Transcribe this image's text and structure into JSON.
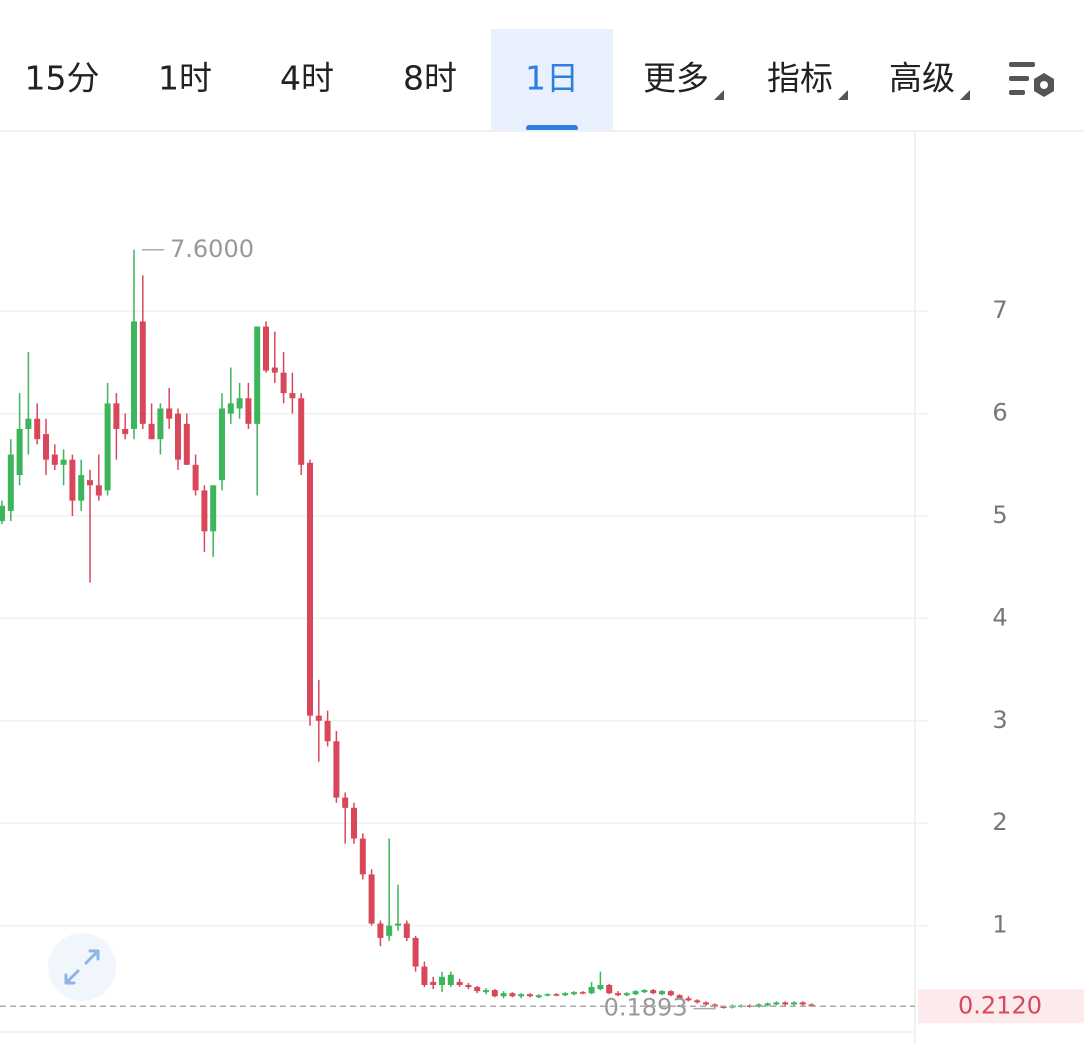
{
  "tabs": {
    "items": [
      "15分",
      "1时",
      "4时",
      "8时",
      "1日",
      "更多",
      "指标",
      "高级"
    ],
    "active": 4
  },
  "chart_data": {
    "type": "candlestick",
    "up_color": "#3db55a",
    "down_color": "#d8475a",
    "ylim": [
      0,
      8.75
    ],
    "yticks": [
      1,
      2,
      3,
      4,
      5,
      6,
      7
    ],
    "grid": true,
    "series": [
      {
        "open": [
          4.95,
          5.05,
          5.4,
          5.85,
          5.95,
          5.8,
          5.6,
          5.5,
          5.55,
          5.15,
          5.35,
          5.3,
          5.25,
          6.1,
          5.85,
          5.85,
          6.9,
          5.9,
          5.75,
          6.05,
          6.0,
          5.9,
          5.5,
          5.25,
          4.85,
          5.35,
          6.0,
          6.05,
          6.15,
          5.9,
          6.85,
          6.45,
          6.4,
          6.2,
          6.15,
          5.52,
          3.05,
          3.0,
          2.8,
          2.25,
          2.15,
          1.85,
          1.5,
          1.02,
          0.9,
          1.0,
          1.02,
          0.88,
          0.6,
          0.45,
          0.42,
          0.42,
          0.45,
          0.42,
          0.4,
          0.35,
          0.37,
          0.31,
          0.34,
          0.31,
          0.33,
          0.3,
          0.32,
          0.33,
          0.32,
          0.33,
          0.35,
          0.34,
          0.38,
          0.42,
          0.34,
          0.32,
          0.33,
          0.35,
          0.37,
          0.33,
          0.36,
          0.32,
          0.29,
          0.27,
          0.25,
          0.23,
          0.21,
          0.2,
          0.21,
          0.22,
          0.21,
          0.22,
          0.23,
          0.25,
          0.23,
          0.25,
          0.23
        ],
        "high": [
          5.15,
          5.75,
          6.2,
          6.6,
          6.1,
          5.95,
          5.7,
          5.65,
          5.6,
          5.55,
          5.45,
          5.6,
          6.3,
          6.2,
          6.0,
          7.6,
          7.35,
          6.1,
          6.1,
          6.25,
          6.05,
          6.0,
          5.6,
          5.3,
          5.3,
          6.2,
          6.45,
          6.3,
          6.3,
          6.85,
          6.9,
          6.8,
          6.6,
          6.4,
          6.2,
          5.55,
          3.4,
          3.1,
          2.9,
          2.3,
          2.2,
          1.9,
          1.55,
          1.05,
          1.85,
          1.4,
          1.05,
          0.9,
          0.65,
          0.5,
          0.55,
          0.55,
          0.48,
          0.44,
          0.41,
          0.39,
          0.38,
          0.36,
          0.35,
          0.34,
          0.34,
          0.33,
          0.34,
          0.34,
          0.35,
          0.36,
          0.36,
          0.45,
          0.55,
          0.43,
          0.36,
          0.35,
          0.37,
          0.38,
          0.38,
          0.37,
          0.37,
          0.33,
          0.31,
          0.28,
          0.26,
          0.24,
          0.22,
          0.23,
          0.23,
          0.23,
          0.24,
          0.25,
          0.26,
          0.26,
          0.26,
          0.26,
          0.24
        ],
        "low": [
          4.92,
          4.95,
          5.3,
          5.6,
          5.7,
          5.4,
          5.45,
          5.3,
          5.0,
          5.05,
          4.35,
          5.15,
          5.2,
          5.55,
          5.75,
          5.75,
          5.85,
          5.75,
          5.6,
          5.85,
          5.45,
          5.5,
          5.2,
          4.65,
          4.6,
          5.25,
          5.9,
          5.95,
          5.85,
          5.2,
          6.4,
          6.3,
          6.1,
          6.0,
          5.4,
          2.95,
          2.6,
          2.75,
          2.2,
          1.8,
          1.8,
          1.45,
          1.0,
          0.8,
          0.85,
          0.95,
          0.85,
          0.55,
          0.4,
          0.38,
          0.35,
          0.4,
          0.4,
          0.38,
          0.34,
          0.33,
          0.3,
          0.29,
          0.3,
          0.29,
          0.3,
          0.29,
          0.31,
          0.31,
          0.31,
          0.32,
          0.33,
          0.33,
          0.37,
          0.33,
          0.31,
          0.31,
          0.32,
          0.34,
          0.33,
          0.32,
          0.31,
          0.28,
          0.26,
          0.24,
          0.22,
          0.19,
          0.1893,
          0.19,
          0.2,
          0.2,
          0.2,
          0.21,
          0.22,
          0.22,
          0.22,
          0.22,
          0.21
        ],
        "close": [
          5.1,
          5.6,
          5.85,
          5.95,
          5.75,
          5.55,
          5.5,
          5.55,
          5.15,
          5.4,
          5.3,
          5.2,
          6.1,
          5.85,
          5.8,
          6.9,
          5.9,
          5.75,
          6.05,
          5.95,
          5.55,
          5.5,
          5.25,
          4.85,
          5.3,
          6.05,
          6.1,
          6.15,
          5.9,
          6.85,
          6.42,
          6.4,
          6.2,
          6.15,
          5.5,
          3.05,
          3.0,
          2.8,
          2.25,
          2.15,
          1.85,
          1.5,
          1.02,
          0.88,
          1.0,
          1.02,
          0.88,
          0.6,
          0.42,
          0.42,
          0.5,
          0.52,
          0.42,
          0.4,
          0.36,
          0.37,
          0.31,
          0.34,
          0.31,
          0.33,
          0.31,
          0.32,
          0.33,
          0.32,
          0.34,
          0.35,
          0.34,
          0.4,
          0.42,
          0.34,
          0.32,
          0.34,
          0.36,
          0.37,
          0.34,
          0.36,
          0.32,
          0.29,
          0.27,
          0.25,
          0.23,
          0.21,
          0.2,
          0.22,
          0.22,
          0.21,
          0.23,
          0.24,
          0.25,
          0.23,
          0.25,
          0.23,
          0.212
        ]
      }
    ],
    "annotations": [
      {
        "value": 7.6,
        "label": "7.6000",
        "side": "right"
      },
      {
        "value": 0.1893,
        "label": "0.1893",
        "side": "left"
      }
    ],
    "last_price": {
      "value": 0.212,
      "label": "0.2120"
    }
  }
}
